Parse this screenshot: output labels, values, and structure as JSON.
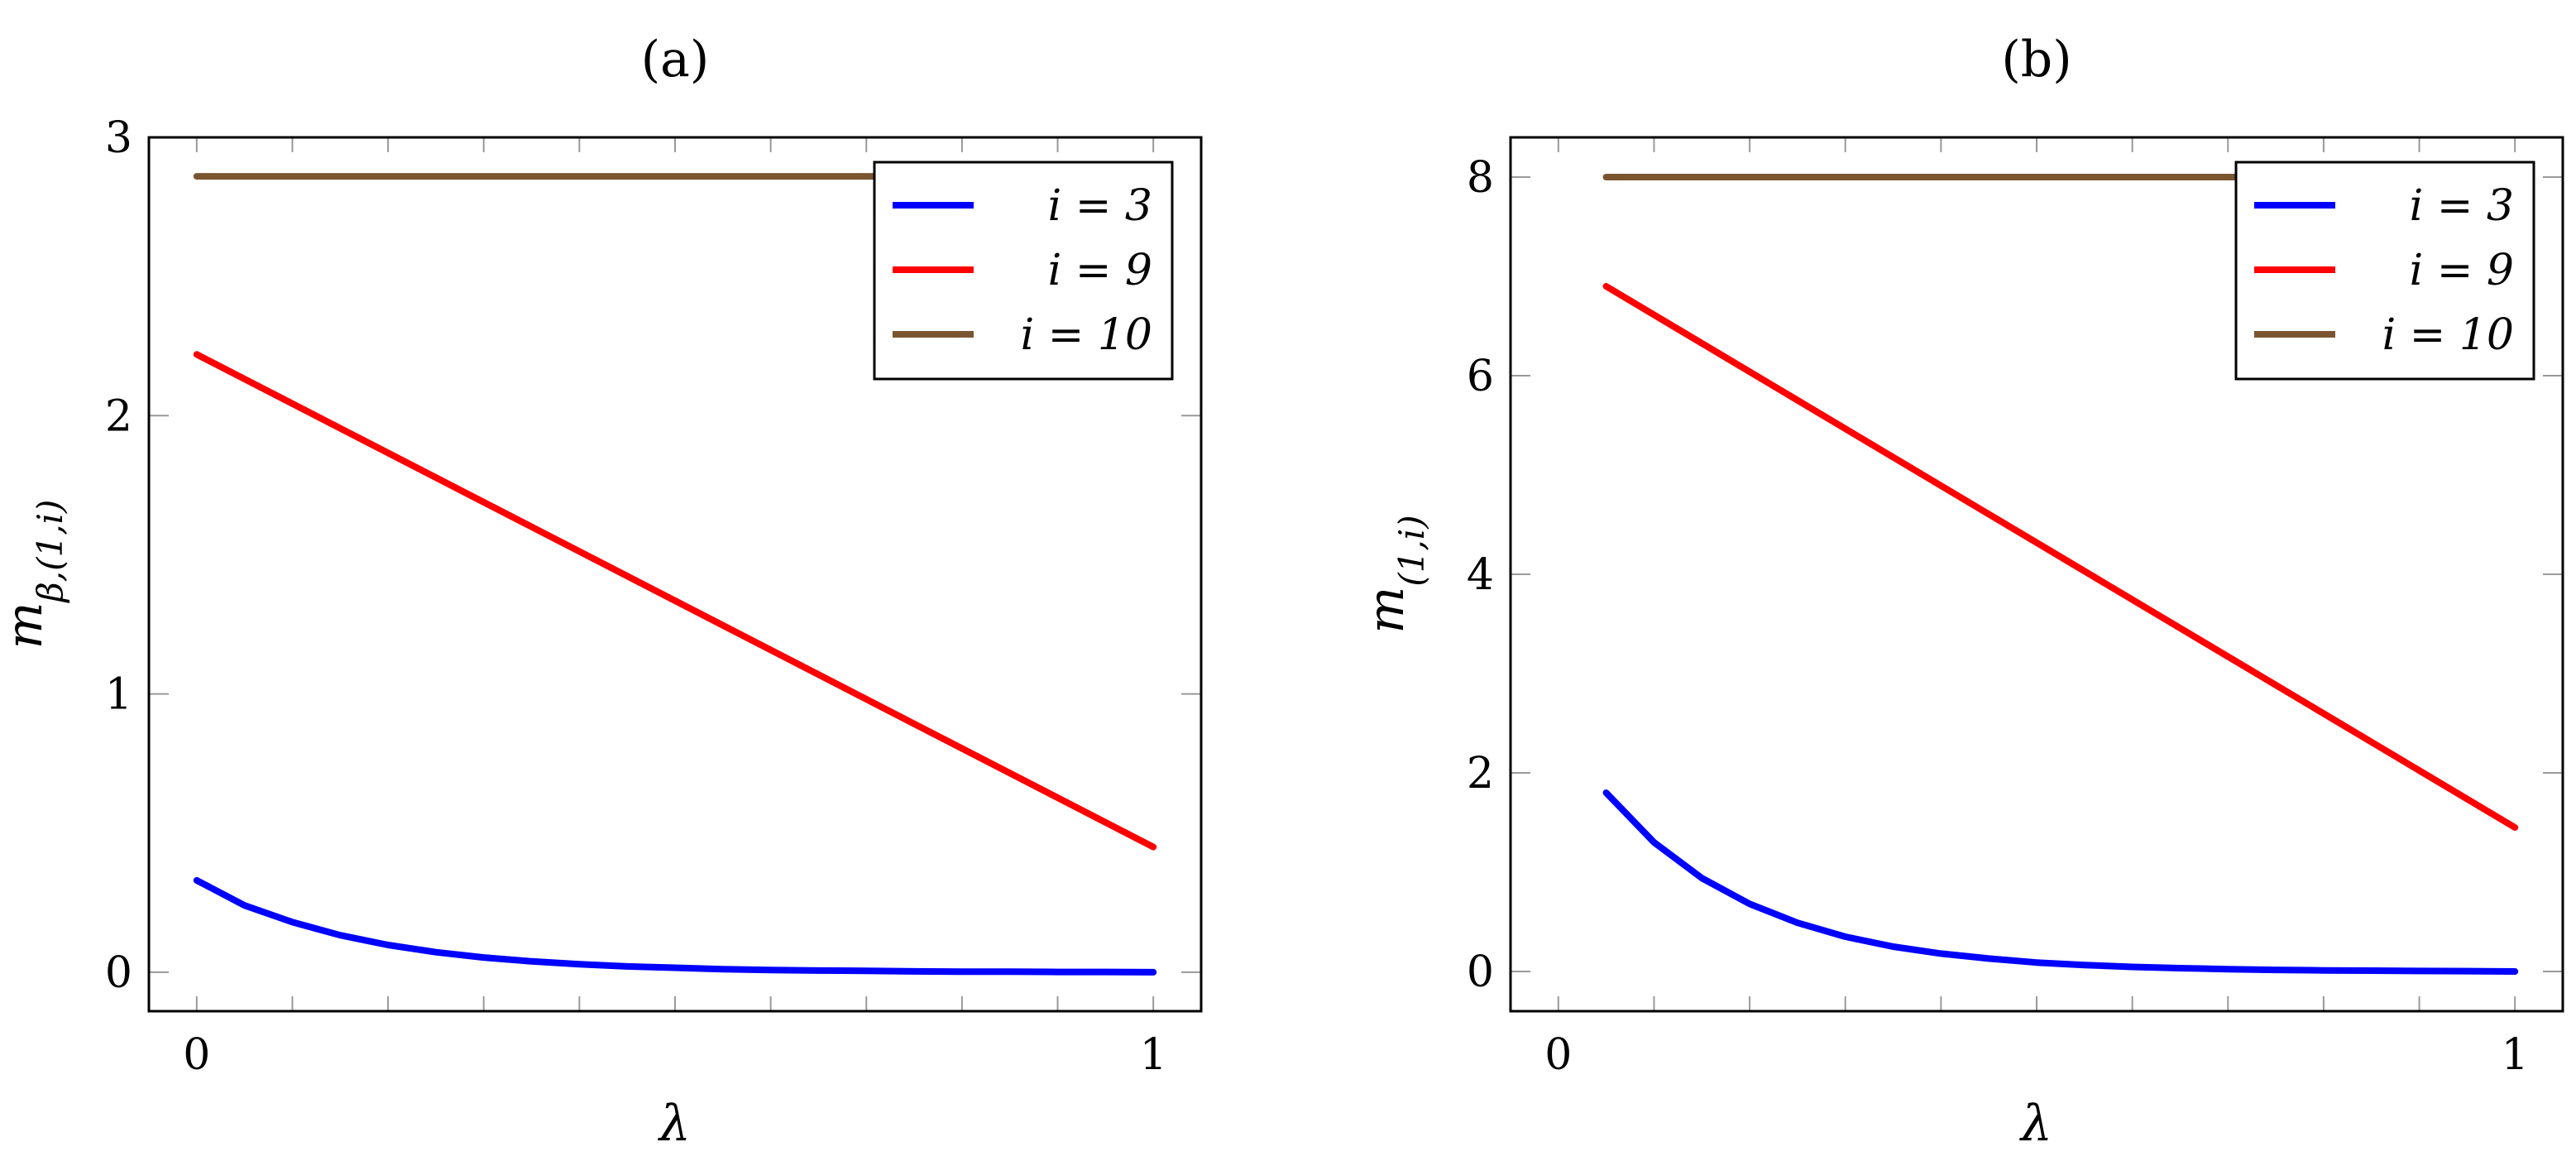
{
  "colors": {
    "i3": "#0000ff",
    "i9": "#ff0000",
    "i10": "#7b5530"
  },
  "chart_data": [
    {
      "type": "line",
      "title": "(a)",
      "xlabel": "λ",
      "ylabel": "m_{β,(1,i)}",
      "xlim": [
        -0.05,
        1.05
      ],
      "ylim": [
        -0.14,
        3.0
      ],
      "xticks": [
        0,
        1
      ],
      "xtick_labels": [
        "0",
        "1"
      ],
      "yticks": [
        0,
        1,
        2,
        3
      ],
      "ytick_labels": [
        "0",
        "1",
        "2",
        "3"
      ],
      "grid": false,
      "legend_position": "top-right",
      "series": [
        {
          "name": "i = 3",
          "color": "#0000ff",
          "x": [
            0,
            0.05,
            0.1,
            0.15,
            0.2,
            0.25,
            0.3,
            0.35,
            0.4,
            0.45,
            0.5,
            0.55,
            0.6,
            0.65,
            0.7,
            0.75,
            0.8,
            0.85,
            0.9,
            0.95,
            1.0
          ],
          "y": [
            0.33,
            0.24,
            0.18,
            0.133,
            0.098,
            0.072,
            0.053,
            0.039,
            0.029,
            0.021,
            0.016,
            0.011,
            0.008,
            0.006,
            0.005,
            0.003,
            0.002,
            0.002,
            0.001,
            0.001,
            0.0
          ]
        },
        {
          "name": "i = 9",
          "color": "#ff0000",
          "x": [
            0,
            1
          ],
          "y": [
            2.22,
            0.45
          ]
        },
        {
          "name": "i = 10",
          "color": "#7b5530",
          "x": [
            0,
            1
          ],
          "y": [
            2.86,
            2.86
          ]
        }
      ]
    },
    {
      "type": "line",
      "title": "(b)",
      "xlabel": "λ",
      "ylabel": "m_{(1,i)}",
      "xlim": [
        -0.05,
        1.05
      ],
      "ylim": [
        -0.4,
        8.4
      ],
      "xticks": [
        0,
        1
      ],
      "xtick_labels": [
        "0",
        "1"
      ],
      "yticks": [
        0,
        2,
        4,
        6,
        8
      ],
      "ytick_labels": [
        "0",
        "2",
        "4",
        "6",
        "8"
      ],
      "grid": false,
      "legend_position": "top-right",
      "series": [
        {
          "name": "i = 3",
          "color": "#0000ff",
          "x": [
            0.05,
            0.1,
            0.15,
            0.2,
            0.25,
            0.3,
            0.35,
            0.4,
            0.45,
            0.5,
            0.55,
            0.6,
            0.65,
            0.7,
            0.75,
            0.8,
            0.85,
            0.9,
            0.95,
            1.0
          ],
          "y": [
            1.8,
            1.3,
            0.94,
            0.68,
            0.49,
            0.35,
            0.25,
            0.18,
            0.13,
            0.09,
            0.065,
            0.046,
            0.033,
            0.023,
            0.016,
            0.011,
            0.008,
            0.005,
            0.003,
            0.0
          ]
        },
        {
          "name": "i = 9",
          "color": "#ff0000",
          "x": [
            0.05,
            1
          ],
          "y": [
            6.9,
            1.45
          ]
        },
        {
          "name": "i = 10",
          "color": "#7b5530",
          "x": [
            0.05,
            1
          ],
          "y": [
            8.0,
            8.0
          ]
        }
      ]
    }
  ]
}
